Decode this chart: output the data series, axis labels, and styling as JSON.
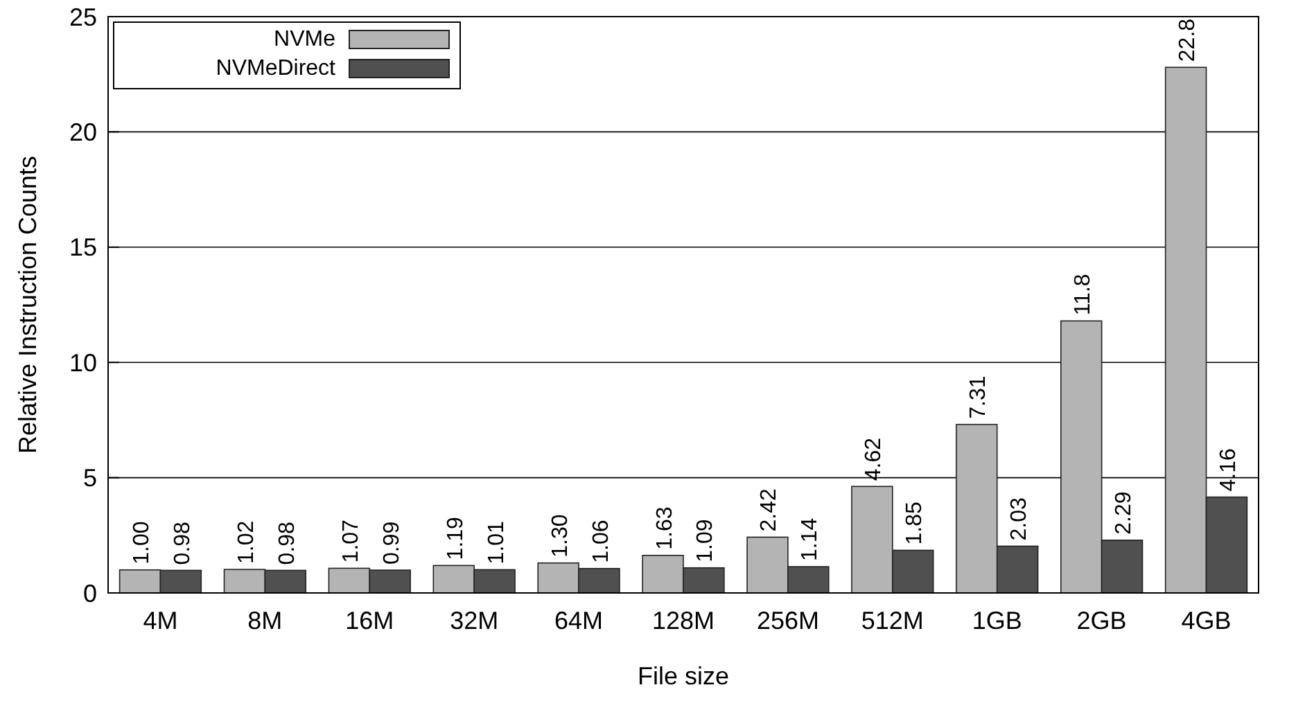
{
  "chart_data": {
    "type": "bar",
    "xlabel": "File size",
    "ylabel": "Relative Instruction Counts",
    "categories": [
      "4M",
      "8M",
      "16M",
      "32M",
      "64M",
      "128M",
      "256M",
      "512M",
      "1GB",
      "2GB",
      "4GB"
    ],
    "series": [
      {
        "name": "NVMe",
        "color": "#b4b4b4",
        "values": [
          1.0,
          1.02,
          1.07,
          1.19,
          1.3,
          1.63,
          2.42,
          4.62,
          7.31,
          11.8,
          22.8
        ],
        "value_labels": [
          "1.00",
          "1.02",
          "1.07",
          "1.19",
          "1.30",
          "1.63",
          "2.42",
          "4.62",
          "7.31",
          "11.8",
          "22.8"
        ]
      },
      {
        "name": "NVMeDirect",
        "color": "#505050",
        "values": [
          0.98,
          0.98,
          0.99,
          1.01,
          1.06,
          1.09,
          1.14,
          1.85,
          2.03,
          2.29,
          4.16
        ],
        "value_labels": [
          "0.98",
          "0.98",
          "0.99",
          "1.01",
          "1.06",
          "1.09",
          "1.14",
          "1.85",
          "2.03",
          "2.29",
          "4.16"
        ]
      }
    ],
    "ylim": [
      0,
      25
    ],
    "yticks": [
      0,
      5,
      10,
      15,
      20,
      25
    ],
    "grid": "y",
    "legend": "top left"
  }
}
